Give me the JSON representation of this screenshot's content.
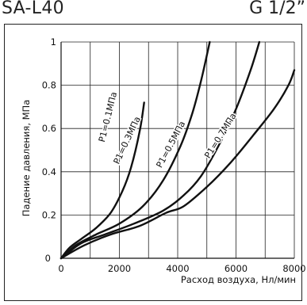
{
  "header": {
    "model": "SA-L40",
    "thread": "G 1/2”"
  },
  "chart_data": {
    "type": "line",
    "title": "",
    "xlabel": "Расход воздуха, Нл/мин",
    "ylabel": "Падение давления, МПа",
    "xlim": [
      0,
      8000
    ],
    "ylim": [
      0,
      1
    ],
    "xticks": [
      0,
      2000,
      4000,
      6000,
      8000
    ],
    "xtick_labels": [
      "0",
      "2000",
      "4000",
      "6000",
      "8000"
    ],
    "yticks": [
      0.2,
      0.4,
      0.6,
      0.8,
      1
    ],
    "ytick_labels": [
      "0.2",
      "0.4",
      "0.6",
      "0.8",
      "1"
    ],
    "grid": true,
    "series": [
      {
        "name": "P1=0.1МПа",
        "x": [
          0,
          300,
          700,
          1200,
          1700,
          2100,
          2400,
          2700,
          2850
        ],
        "y": [
          0,
          0.05,
          0.09,
          0.14,
          0.21,
          0.31,
          0.42,
          0.59,
          0.72
        ]
      },
      {
        "name": "P1=0.3МПа",
        "x": [
          0,
          500,
          1200,
          2000,
          2800,
          3500,
          4100,
          4500,
          4800,
          5100
        ],
        "y": [
          0,
          0.06,
          0.11,
          0.16,
          0.24,
          0.36,
          0.52,
          0.67,
          0.82,
          1.0
        ]
      },
      {
        "name": "P1=0.5МПа",
        "x": [
          0,
          700,
          1500,
          2500,
          3500,
          4200,
          4800,
          5400,
          6000,
          6500,
          6800
        ],
        "y": [
          0,
          0.07,
          0.11,
          0.16,
          0.22,
          0.29,
          0.38,
          0.52,
          0.69,
          0.87,
          1.0
        ]
      },
      {
        "name": "P1=0.7МПа",
        "x": [
          0,
          800,
          1700,
          2700,
          3600,
          4200,
          5000,
          5800,
          6600,
          7300,
          7800,
          8000
        ],
        "y": [
          0,
          0.06,
          0.11,
          0.15,
          0.21,
          0.24,
          0.33,
          0.44,
          0.57,
          0.69,
          0.8,
          0.87
        ]
      }
    ]
  }
}
